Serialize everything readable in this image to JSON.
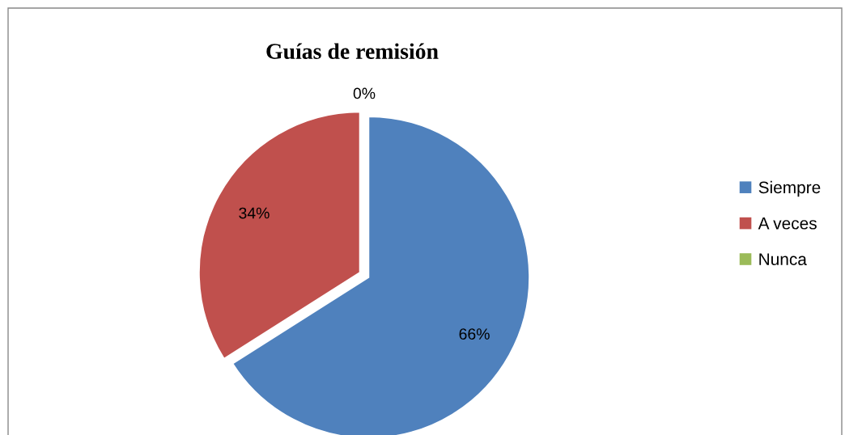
{
  "chart_data": {
    "type": "pie",
    "title": "Guías de remisión",
    "categories": [
      "Siempre",
      "A veces",
      "Nunca"
    ],
    "values": [
      66,
      34,
      0
    ],
    "colors": [
      "#4f81bd",
      "#c0504d",
      "#9bbb59"
    ],
    "value_labels": [
      "66%",
      "34%",
      "0%"
    ],
    "legend": "right"
  }
}
